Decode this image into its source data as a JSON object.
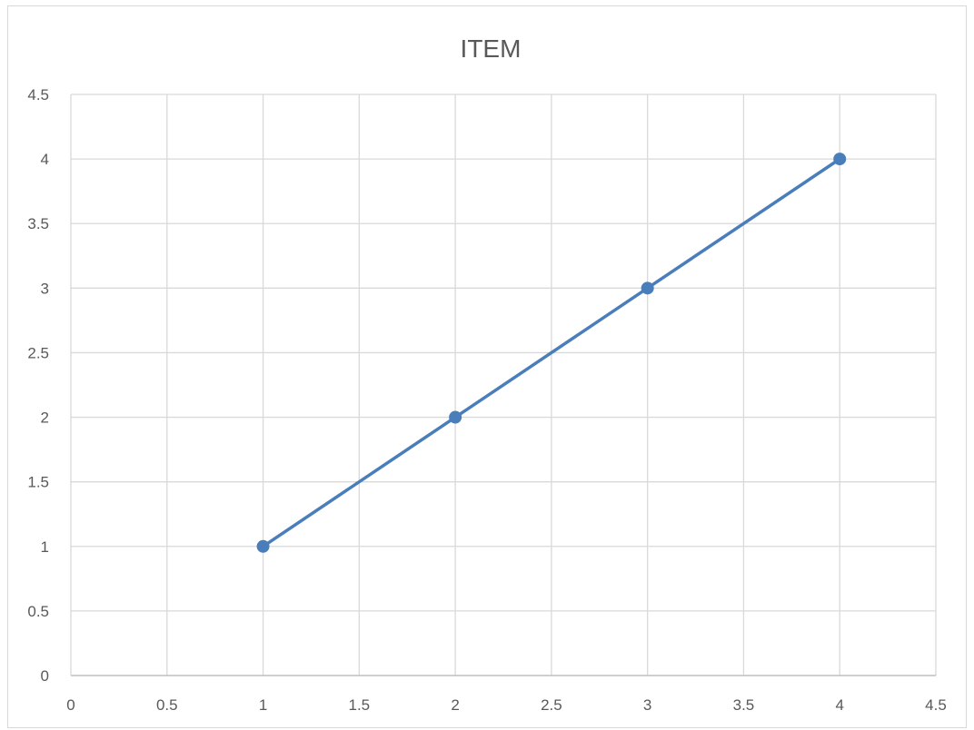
{
  "chart_data": {
    "type": "scatter",
    "title": "ITEM",
    "xlabel": "",
    "ylabel": "",
    "xlim": [
      0,
      4.5
    ],
    "ylim": [
      0,
      4.5
    ],
    "x_ticks": [
      "0",
      "0.5",
      "1",
      "1.5",
      "2",
      "2.5",
      "3",
      "3.5",
      "4",
      "4.5"
    ],
    "y_ticks": [
      "0",
      "0.5",
      "1",
      "1.5",
      "2",
      "2.5",
      "3",
      "3.5",
      "4",
      "4.5"
    ],
    "grid": true,
    "legend": "none",
    "series": [
      {
        "color": "#4a7ebb",
        "lines": true,
        "markers": true,
        "points": [
          {
            "x": 1,
            "y": 1
          },
          {
            "x": 2,
            "y": 2
          },
          {
            "x": 3,
            "y": 3
          },
          {
            "x": 4,
            "y": 4
          }
        ]
      }
    ]
  }
}
